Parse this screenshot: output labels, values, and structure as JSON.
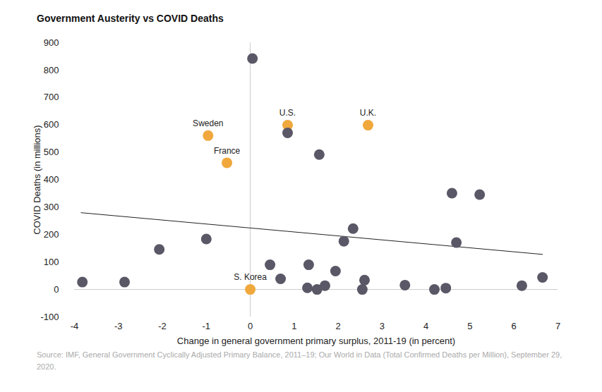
{
  "chart_data": {
    "type": "scatter",
    "title": "Government Austerity vs COVID Deaths",
    "x_label": "Change in general government primary surplus, 2011-19 (in percent)",
    "y_label": "COVID Deaths (in millions)",
    "source": "Source: IMF, General Government Cyclically Adjusted Primary Balance, 2011–19; Our World in Data (Total Confirmed Deaths per Million), September 29, 2020.",
    "x": [
      0.05,
      -0.96,
      -0.53,
      0.85,
      2.68,
      0.85,
      1.57,
      4.59,
      5.22,
      2.34,
      2.13,
      4.69,
      -1.0,
      -2.07,
      -3.82,
      -2.86,
      0.45,
      1.33,
      0.69,
      0.0,
      1.3,
      1.52,
      1.7,
      1.94,
      2.6,
      2.55,
      3.52,
      4.19,
      4.45,
      6.18,
      6.65
    ],
    "values": [
      842,
      561,
      462,
      599,
      599,
      571,
      492,
      351,
      346,
      222,
      176,
      171,
      184,
      146,
      27,
      27,
      90,
      90,
      39,
      0,
      6,
      0,
      14,
      67,
      34,
      0,
      16,
      0,
      5,
      14,
      44
    ],
    "labels": [
      null,
      "Sweden",
      "France",
      "U.S.",
      "U.K.",
      null,
      null,
      null,
      null,
      null,
      null,
      null,
      null,
      null,
      null,
      null,
      null,
      null,
      null,
      "S. Korea",
      null,
      null,
      null,
      null,
      null,
      null,
      null,
      null,
      null,
      null,
      null
    ],
    "colors": [
      "#5a5766",
      "#f0a83c",
      "#f0a83c",
      "#f0a83c",
      "#f0a83c",
      "#5a5766",
      "#5a5766",
      "#5a5766",
      "#5a5766",
      "#5a5766",
      "#5a5766",
      "#5a5766",
      "#5a5766",
      "#5a5766",
      "#5a5766",
      "#5a5766",
      "#5a5766",
      "#5a5766",
      "#5a5766",
      "#f0a83c",
      "#5a5766",
      "#5a5766",
      "#5a5766",
      "#5a5766",
      "#5a5766",
      "#5a5766",
      "#5a5766",
      "#5a5766",
      "#5a5766",
      "#5a5766",
      "#5a5766"
    ],
    "trendline": {
      "x": [
        -3.85,
        6.65
      ],
      "values": [
        280,
        128
      ],
      "color": "#222222"
    },
    "xlim": [
      -4,
      7
    ],
    "xticks": [
      -4,
      -3,
      -2,
      -1,
      0,
      1,
      2,
      3,
      4,
      5,
      6,
      7
    ],
    "ylim": [
      -100,
      900
    ],
    "yticks": [
      -100,
      0,
      100,
      200,
      300,
      400,
      500,
      600,
      700,
      800,
      900
    ],
    "grid": false
  }
}
